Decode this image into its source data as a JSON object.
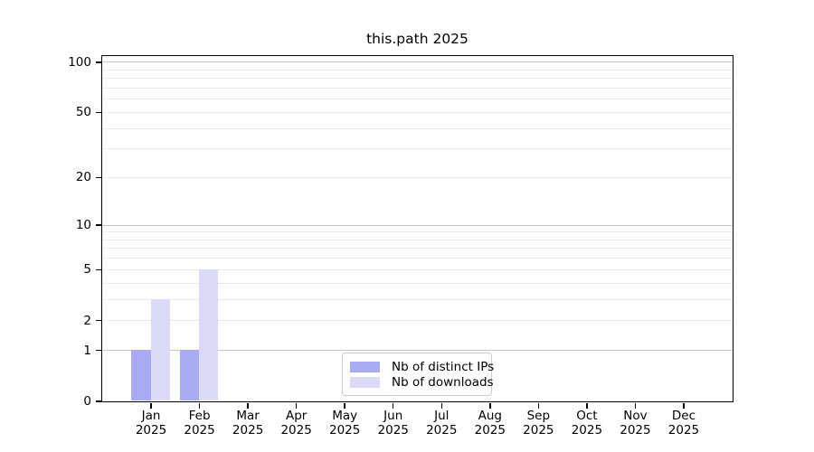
{
  "chart_data": {
    "type": "bar",
    "title": "this.path 2025",
    "categories": [
      "Jan",
      "Feb",
      "Mar",
      "Apr",
      "May",
      "Jun",
      "Jul",
      "Aug",
      "Sep",
      "Oct",
      "Nov",
      "Dec"
    ],
    "x_year_label": "2025",
    "series": [
      {
        "name": "Nb of distinct IPs",
        "color": "#aaaaf2",
        "values": [
          1,
          1,
          0,
          0,
          0,
          0,
          0,
          0,
          0,
          0,
          0,
          0
        ]
      },
      {
        "name": "Nb of downloads",
        "color": "#dbdbf8",
        "values": [
          3,
          5,
          0,
          0,
          0,
          0,
          0,
          0,
          0,
          0,
          0,
          0
        ]
      }
    ],
    "yscale": "log1p",
    "ylim": [
      0,
      110
    ],
    "yticks": [
      0,
      1,
      2,
      5,
      10,
      20,
      50,
      100
    ],
    "minor_gridlines": [
      2,
      3,
      4,
      5,
      6,
      7,
      8,
      9,
      20,
      30,
      40,
      50,
      60,
      70,
      80,
      90
    ],
    "major_gridlines": [
      1,
      10,
      100
    ],
    "grid": true,
    "legend_position": "bottom-center",
    "colors": {
      "axis": "#000000",
      "major_grid": "#c6c6c6",
      "minor_grid": "#ebebeb",
      "background": "#ffffff"
    }
  }
}
